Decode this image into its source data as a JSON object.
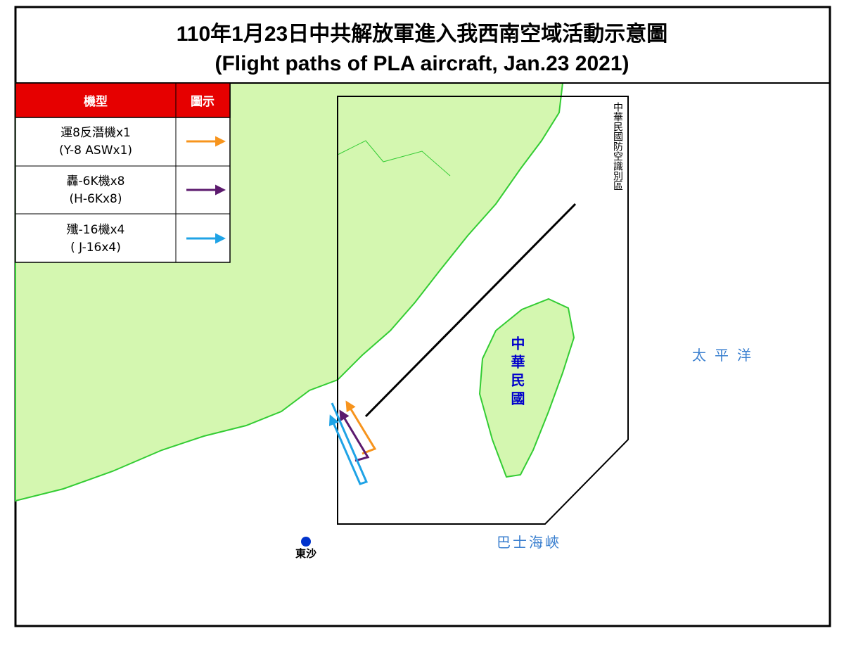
{
  "header": {
    "title": "110年1月23日中共解放軍進入我西南空域活動示意圖",
    "subtitle": "(Flight paths of PLA aircraft, Jan.23 2021)"
  },
  "legend": {
    "columns": [
      "機型",
      "圖示"
    ],
    "rows": [
      {
        "label": "運8反潛機x1",
        "label_en": "(Y-8 ASWx1)",
        "color": "#f7941d"
      },
      {
        "label": "轟-6K機x8",
        "label_en": "(H-6Kx8)",
        "color": "#5c1a6e"
      },
      {
        "label": "殲-16機x4",
        "label_en": "( J-16x4)",
        "color": "#1fa3e6"
      }
    ]
  },
  "labels": {
    "adiz": "中華民國防空識別區",
    "taiwan": "中華民國",
    "pacific": "太平洋",
    "bashi": "巴士海峽",
    "dongsha": "東沙"
  }
}
